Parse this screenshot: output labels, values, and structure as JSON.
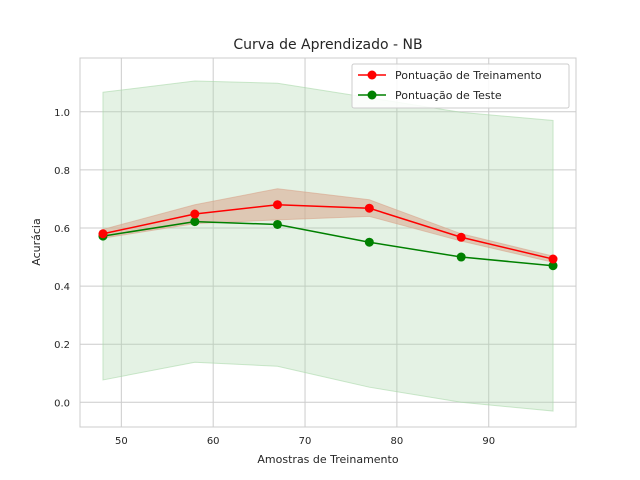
{
  "chart_data": {
    "type": "line",
    "title": "Curva de Aprendizado - NB",
    "xlabel": "Amostras de Treinamento",
    "ylabel": "Acurácia",
    "xlim": [
      45.5,
      99.5
    ],
    "ylim": [
      -0.085,
      1.185
    ],
    "x_ticks": [
      50,
      60,
      70,
      80,
      90
    ],
    "y_ticks": [
      0.0,
      0.2,
      0.4,
      0.6,
      0.8,
      1.0
    ],
    "x_tick_labels": [
      "50",
      "60",
      "70",
      "80",
      "90"
    ],
    "y_tick_labels": [
      "0.0",
      "0.2",
      "0.4",
      "0.6",
      "0.8",
      "1.0"
    ],
    "grid": true,
    "legend_position": "top-right",
    "x": [
      48,
      58,
      67,
      77,
      87,
      97
    ],
    "series": [
      {
        "name": "Pontuação de Treinamento",
        "color": "#ff0000",
        "values": [
          0.58,
          0.648,
          0.68,
          0.668,
          0.568,
          0.493
        ],
        "band_lower": [
          0.565,
          0.615,
          0.628,
          0.64,
          0.555,
          0.482
        ],
        "band_upper": [
          0.595,
          0.68,
          0.735,
          0.697,
          0.58,
          0.503
        ],
        "band_color": "#d9a58c"
      },
      {
        "name": "Pontuação de Teste",
        "color": "#008000",
        "values": [
          0.572,
          0.622,
          0.612,
          0.551,
          0.5,
          0.47
        ],
        "band_lower": [
          0.077,
          0.138,
          0.124,
          0.052,
          0.0,
          -0.03
        ],
        "band_upper": [
          1.067,
          1.106,
          1.098,
          1.048,
          0.998,
          0.97
        ],
        "band_color": "#aad8aa"
      }
    ]
  }
}
